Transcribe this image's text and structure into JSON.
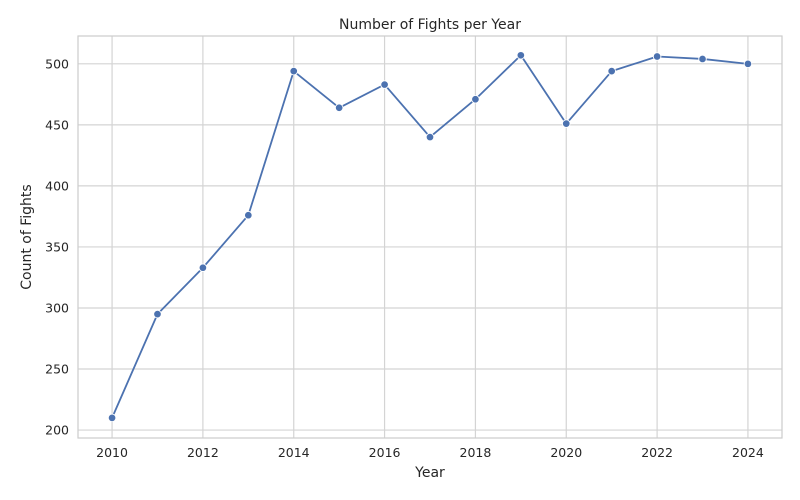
{
  "chart_data": {
    "type": "line",
    "title": "Number of Fights per Year",
    "xlabel": "Year",
    "ylabel": "Count of Fights",
    "x": [
      2010,
      2011,
      2012,
      2013,
      2014,
      2015,
      2016,
      2017,
      2018,
      2019,
      2020,
      2021,
      2022,
      2023,
      2024
    ],
    "series": [
      {
        "values": [
          210,
          295,
          333,
          376,
          494,
          464,
          483,
          440,
          471,
          507,
          451,
          494,
          506,
          504,
          500
        ],
        "color": "#4c72b0",
        "marker": "circle"
      }
    ],
    "x_ticks": [
      2010,
      2012,
      2014,
      2016,
      2018,
      2020,
      2022,
      2024
    ],
    "y_ticks": [
      200,
      250,
      300,
      350,
      400,
      450,
      500
    ],
    "xlim": [
      2009.25,
      2024.75
    ],
    "ylim": [
      193.5,
      522.8
    ],
    "grid": true,
    "legend": "none"
  }
}
